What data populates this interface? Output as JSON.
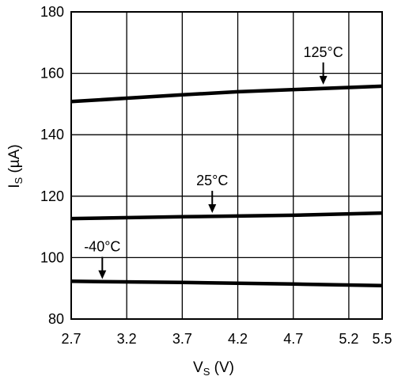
{
  "chart_data": {
    "type": "line",
    "xlabel": {
      "main": "V",
      "sub": "S",
      "unit": " (V)"
    },
    "ylabel": {
      "main": "I",
      "sub": "S",
      "unit": " (µA)"
    },
    "xlim": [
      2.7,
      5.5
    ],
    "ylim": [
      80,
      180
    ],
    "x_ticks": [
      "2.7",
      "3.2",
      "3.7",
      "4.2",
      "4.7",
      "5.2",
      "5.5"
    ],
    "y_ticks": [
      "80",
      "100",
      "120",
      "140",
      "160",
      "180"
    ],
    "grid": true,
    "series": [
      {
        "name": "125°C",
        "x": [
          2.7,
          3.7,
          4.2,
          5.5
        ],
        "y": [
          150.8,
          153.0,
          154.0,
          155.8
        ]
      },
      {
        "name": "25°C",
        "x": [
          2.7,
          3.7,
          4.7,
          5.5
        ],
        "y": [
          112.7,
          113.3,
          113.8,
          114.5
        ]
      },
      {
        "name": "-40°C",
        "x": [
          2.7,
          3.7,
          4.7,
          5.5
        ],
        "y": [
          92.3,
          91.9,
          91.4,
          90.9
        ]
      }
    ],
    "annotations": [
      {
        "text": "125°C",
        "x": 4.97,
        "y": 155.3
      },
      {
        "text": "25°C",
        "x": 3.97,
        "y": 113.5
      },
      {
        "text": "-40°C",
        "x": 2.98,
        "y": 92.0
      }
    ]
  }
}
